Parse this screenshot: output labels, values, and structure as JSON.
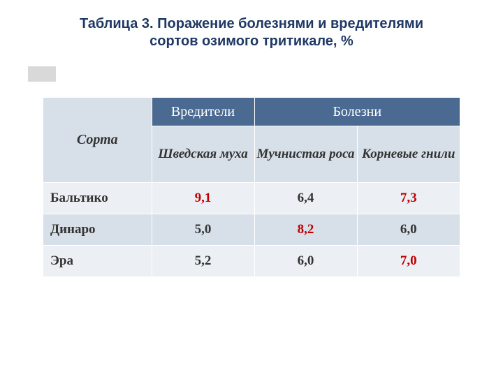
{
  "title": {
    "line1": "Таблица 3. Поражение болезнями и вредителями",
    "line2": "сортов озимого  тритикале, %",
    "fontsize": 20,
    "color": "#1f3864"
  },
  "accent": {
    "orange": "#e48b3e",
    "grey": "#d9d9d9"
  },
  "table": {
    "header_bg_dark": "#4a6a92",
    "header_bg_light": "#d7e0e9",
    "row_bg_a": "#ecf0f4",
    "row_bg_b": "#d7e0e9",
    "columns": {
      "sorta": "Сорта",
      "group0": "Вредители",
      "group1": "Болезни",
      "sub0": "Шведская муха",
      "sub1": "Мучнистая роса",
      "sub2": "Корневые гнили"
    },
    "rows": [
      {
        "name": "Бальтико",
        "v0": {
          "text": "9,1",
          "red": true
        },
        "v1": {
          "text": "6,4",
          "red": false
        },
        "v2": {
          "text": "7,3",
          "red": true
        }
      },
      {
        "name": "Динаро",
        "v0": {
          "text": "5,0",
          "red": false
        },
        "v1": {
          "text": "8,2",
          "red": true
        },
        "v2": {
          "text": "6,0",
          "red": false
        }
      },
      {
        "name": "Эра",
        "v0": {
          "text": "5,2",
          "red": false
        },
        "v1": {
          "text": "6,0",
          "red": false
        },
        "v2": {
          "text": "7,0",
          "red": true
        }
      }
    ],
    "fontsize_header": 20,
    "fontsize_sub": 19,
    "fontsize_body": 19,
    "red_color": "#c00000"
  }
}
